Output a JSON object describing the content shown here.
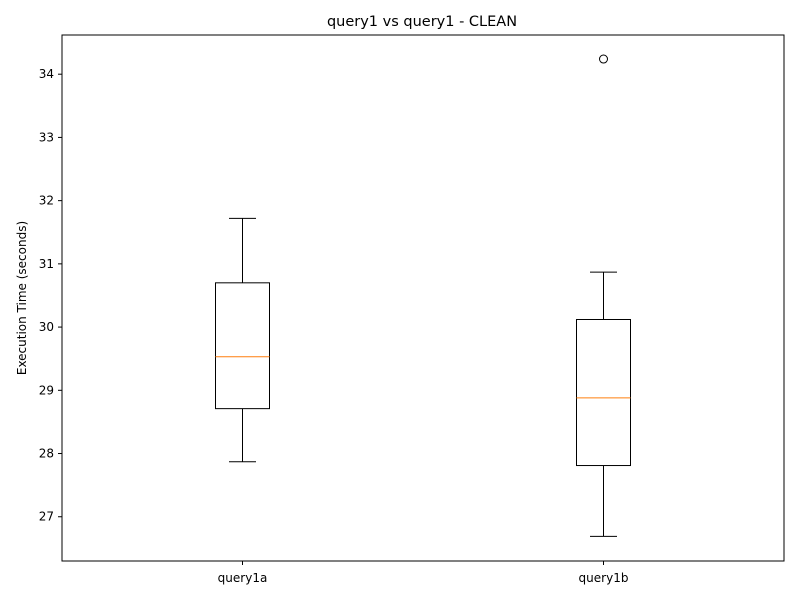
{
  "chart_data": {
    "type": "box",
    "title": "query1 vs query1 - CLEAN",
    "xlabel": "",
    "ylabel": "Execution Time (seconds)",
    "categories": [
      "query1a",
      "query1b"
    ],
    "boxes": [
      {
        "name": "query1a",
        "whisker_low": 27.87,
        "q1": 28.71,
        "median": 29.53,
        "q3": 30.7,
        "whisker_high": 31.72,
        "outliers": []
      },
      {
        "name": "query1b",
        "whisker_low": 26.69,
        "q1": 27.81,
        "median": 28.88,
        "q3": 30.12,
        "whisker_high": 30.87,
        "outliers": [
          34.24
        ]
      }
    ],
    "ylim": [
      26.3,
      34.62
    ],
    "yticks": [
      27,
      28,
      29,
      30,
      31,
      32,
      33,
      34
    ],
    "grid": false,
    "legend": "none",
    "colors": {
      "box": "#000000",
      "median": "#ff7f0e",
      "background": "#ffffff"
    }
  }
}
